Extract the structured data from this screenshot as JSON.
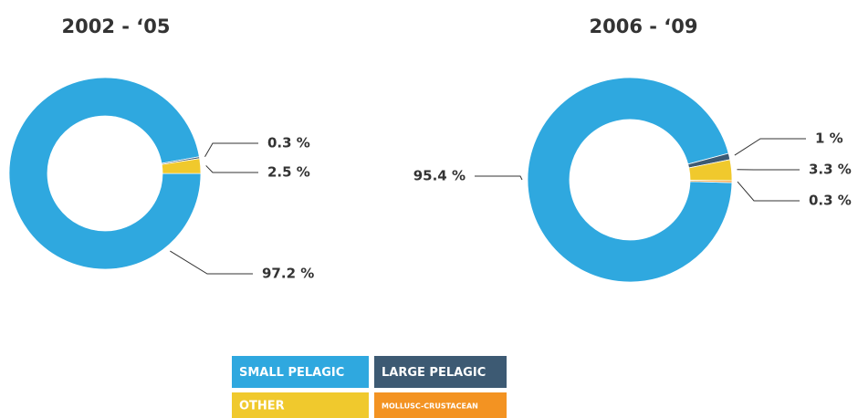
{
  "chart_data": [
    {
      "type": "pie",
      "donut": true,
      "title": "2002 - ‘05",
      "categories": [
        "SMALL PELAGIC",
        "LARGE PELAGIC",
        "OTHER"
      ],
      "values": [
        97.2,
        0.3,
        2.5
      ],
      "value_labels": [
        "97.2 %",
        "0.3 %",
        "2.5 %"
      ],
      "colors": [
        "#2fa8df",
        "#3d5a73",
        "#f0c92d"
      ]
    },
    {
      "type": "pie",
      "donut": true,
      "title": "2006 - ‘09",
      "categories": [
        "SMALL PELAGIC",
        "LARGE PELAGIC",
        "OTHER",
        "MOLLUSC-CRUSTACEAN"
      ],
      "values": [
        95.4,
        1,
        3.3,
        0.3
      ],
      "value_labels": [
        "95.4 %",
        "1 %",
        "3.3 %",
        "0.3 %"
      ],
      "colors": [
        "#2fa8df",
        "#3d5a73",
        "#f0c92d",
        "#f39322"
      ]
    }
  ]
}
